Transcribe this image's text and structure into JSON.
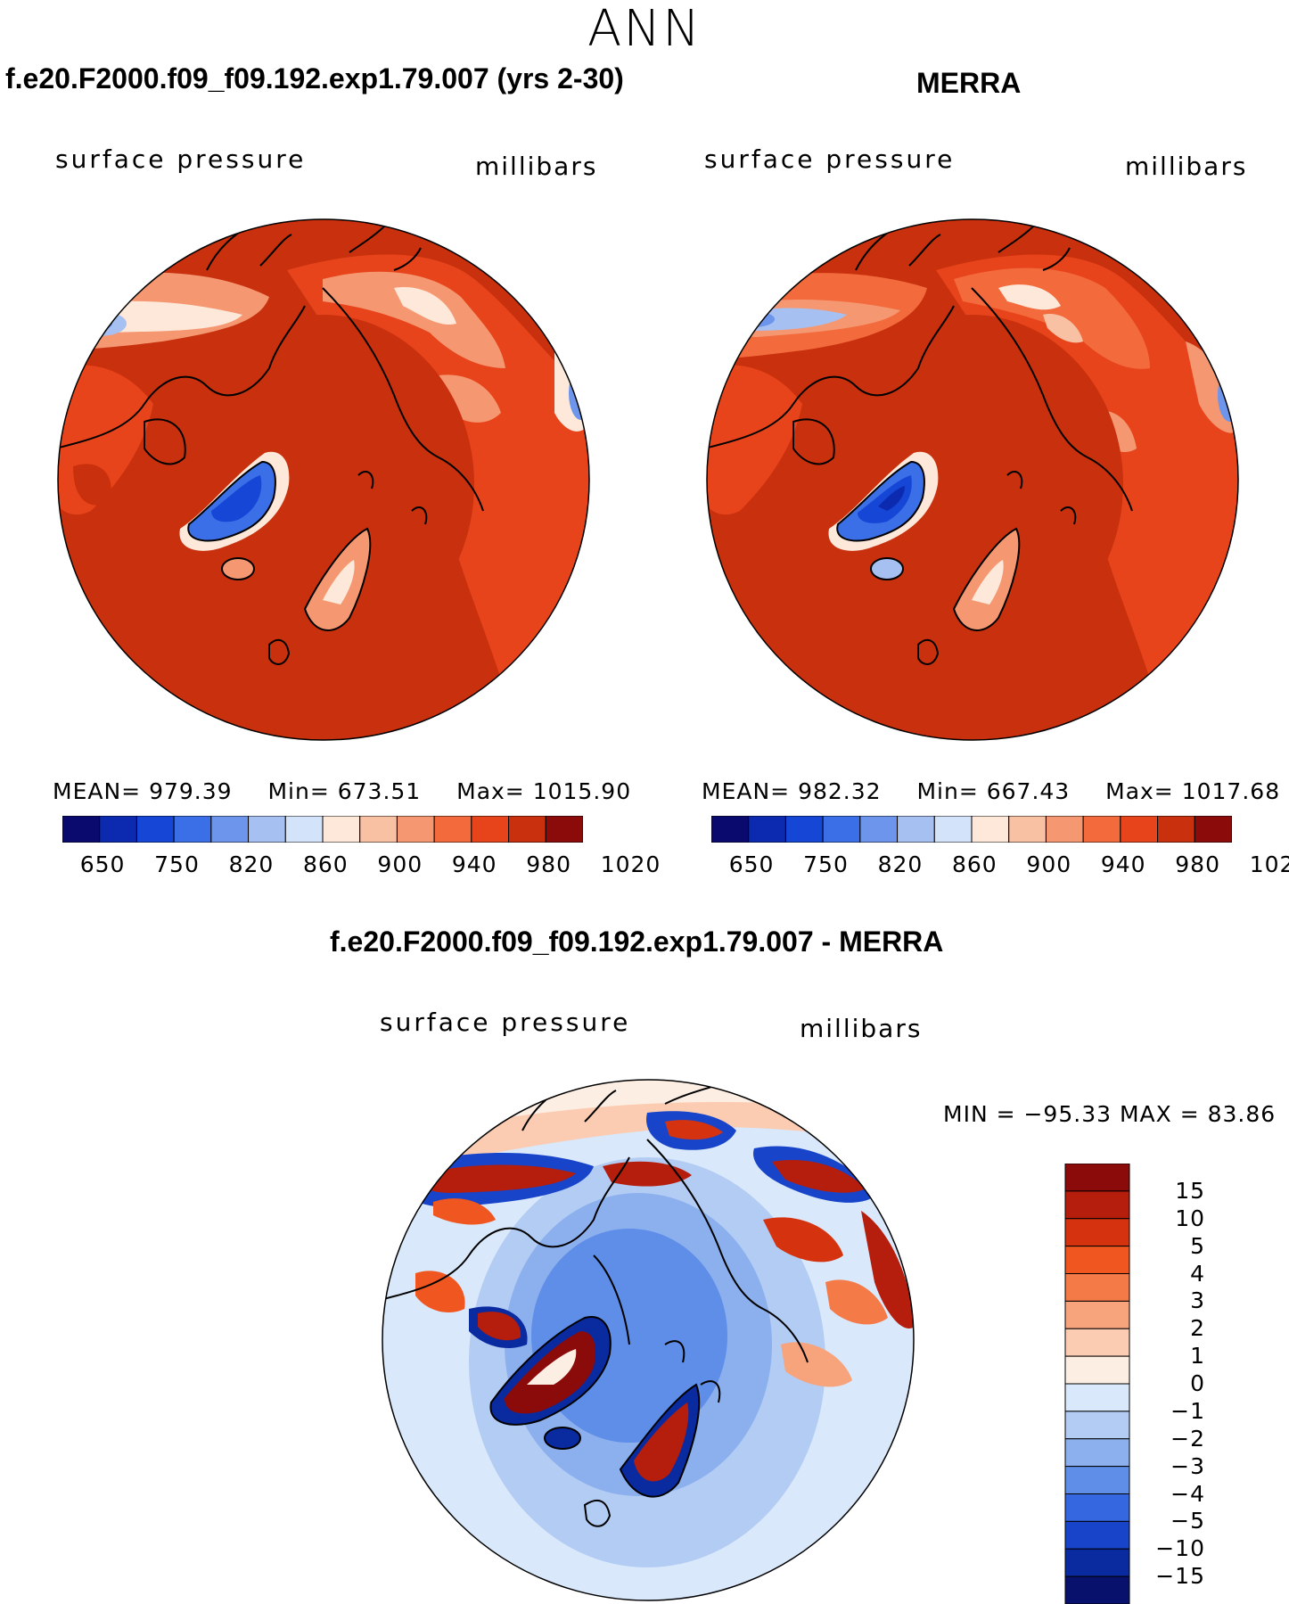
{
  "page_title": "ANN",
  "panels": [
    {
      "title": "f.e20.F2000.f09_f09.192.exp1.79.007 (yrs 2-30)",
      "variable": "surface pressure",
      "units": "millibars",
      "mean_label": "MEAN=",
      "mean": "979.39",
      "min_label": "Min=",
      "min": "673.51",
      "max_label": "Max=",
      "max": "1015.90"
    },
    {
      "title": "MERRA",
      "variable": "surface pressure",
      "units": "millibars",
      "mean_label": "MEAN=",
      "mean": "982.32",
      "min_label": "Min=",
      "min": "667.43",
      "max_label": "Max=",
      "max": "1017.68"
    }
  ],
  "diff_panel": {
    "title": "f.e20.F2000.f09_f09.192.exp1.79.007 - MERRA",
    "variable": "surface pressure",
    "units": "millibars",
    "minmax": "MIN = −95.33 MAX =   83.86"
  },
  "colorbar_horizontal": {
    "colors": [
      "#0a0a6e",
      "#0b2ab0",
      "#1546d6",
      "#3a6fe8",
      "#6d95ec",
      "#a7c0f2",
      "#d3e3fa",
      "#fde8d9",
      "#f9c1a4",
      "#f59872",
      "#f36a3c",
      "#e8441b",
      "#c8300e",
      "#8b0a0a"
    ],
    "labels": [
      "650",
      "750",
      "820",
      "860",
      "900",
      "940",
      "980",
      "1020"
    ]
  },
  "colorbar_vertical": {
    "colors": [
      "#8b0a0a",
      "#b51d0c",
      "#d5330f",
      "#f0561f",
      "#f47a48",
      "#f7a47d",
      "#fbccb1",
      "#fdeee3",
      "#d9e8fa",
      "#b3ccf4",
      "#8cafee",
      "#5e8ee8",
      "#3568e0",
      "#1744c9",
      "#0a2aa0",
      "#08126c"
    ],
    "labels": [
      "15",
      "10",
      "5",
      "4",
      "3",
      "2",
      "1",
      "0",
      "−1",
      "−2",
      "−3",
      "−4",
      "−5",
      "−10",
      "−15"
    ]
  }
}
